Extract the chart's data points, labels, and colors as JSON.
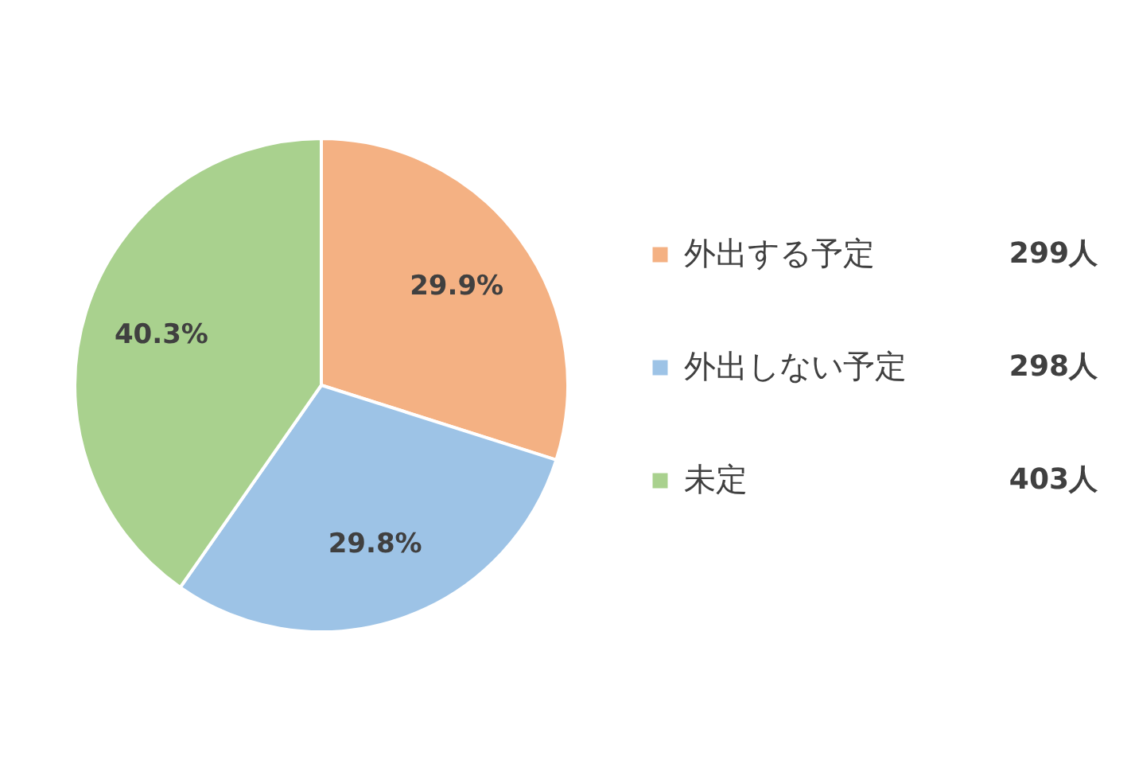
{
  "chart_data": {
    "type": "pie",
    "categories": [
      "外出する予定",
      "外出しない予定",
      "未定"
    ],
    "values": [
      29.9,
      29.8,
      40.3
    ],
    "value_labels": [
      "29.9%",
      "29.8%",
      "40.3%"
    ],
    "colors": [
      "#f4b183",
      "#9dc3e6",
      "#a9d18e"
    ],
    "legend": "right",
    "annotations": [
      "299人",
      "298人",
      "403人"
    ]
  }
}
